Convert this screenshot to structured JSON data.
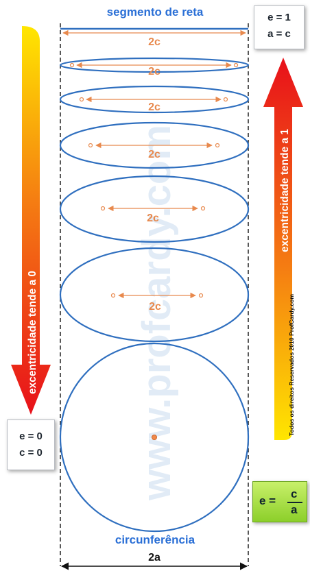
{
  "title_top": "segmento de reta",
  "title_bottom": "circunferência",
  "focal_label": "2c",
  "width_label": "2a",
  "left_arrow_text": "excentricidade tende a 0",
  "right_arrow_text": "excentricidade tende a 1",
  "copyright": "Todos os direitos Reservados 2010 ProfCardy.com",
  "watermark": "www.profcardy.com",
  "top_box": {
    "line1": "e = 1",
    "line2": "a = c"
  },
  "bottom_box": {
    "line1": "e = 0",
    "line2": "c = 0"
  },
  "formula": {
    "lhs": "e =",
    "numerator": "c",
    "denominator": "a"
  },
  "colors": {
    "ellipse": "#2f6fbf",
    "focal": "#e8894d",
    "title": "#2a6fd6",
    "arrow_red": "#e8101a",
    "arrow_orange": "#f57d12",
    "arrow_yellow": "#ffe600"
  }
}
